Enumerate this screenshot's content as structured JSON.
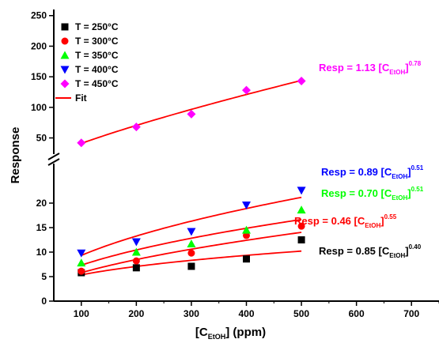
{
  "chart_data": {
    "type": "scatter",
    "ylabel": "Response",
    "xlabel_main": "[C",
    "xlabel_sub": "EtOH",
    "xlabel_tail": "] (ppm)",
    "xlim": [
      50,
      750
    ],
    "x_ticks": [
      100,
      200,
      300,
      400,
      500,
      600,
      700
    ],
    "x_tick_labels": [
      "100",
      "200",
      "300",
      "400",
      "500",
      "600",
      "700"
    ],
    "axis_break": true,
    "lower_ylim": [
      0,
      25
    ],
    "lower_y_ticks": [
      0,
      5,
      10,
      15,
      20
    ],
    "lower_y_tick_labels": [
      "0",
      "5",
      "10",
      "15",
      "20"
    ],
    "upper_ylim": [
      30,
      260
    ],
    "upper_y_ticks": [
      50,
      100,
      150,
      200,
      250
    ],
    "upper_y_tick_labels": [
      "50",
      "100",
      "150",
      "200",
      "250"
    ],
    "x": [
      100,
      200,
      300,
      400,
      500
    ],
    "series": [
      {
        "name": "T = 250°C",
        "marker": "square",
        "color": "#000000",
        "values": [
          5.8,
          6.8,
          7.1,
          8.6,
          12.5
        ],
        "fit": {
          "a": 0.85,
          "b": 0.4
        },
        "fit_label_main": "Resp = 0.85 [C",
        "fit_label_sub": "EtOH",
        "fit_label_close": "]",
        "fit_label_exp": "0.40"
      },
      {
        "name": "T = 300°C",
        "marker": "circle",
        "color": "#ff0000",
        "values": [
          6.1,
          8.2,
          9.8,
          13.4,
          15.3
        ],
        "fit": {
          "a": 0.46,
          "b": 0.55
        },
        "fit_label_main": "Resp = 0.46 [C",
        "fit_label_sub": "EtOH",
        "fit_label_close": "]",
        "fit_label_exp": "0.55"
      },
      {
        "name": "T = 350°C",
        "marker": "triangle-up",
        "color": "#00ff00",
        "values": [
          7.8,
          10.0,
          11.7,
          14.5,
          18.6
        ],
        "fit": {
          "a": 0.7,
          "b": 0.51
        },
        "fit_label_main": "Resp = 0.70 [C",
        "fit_label_sub": "EtOH",
        "fit_label_close": "]",
        "fit_label_exp": "0.51"
      },
      {
        "name": "T = 400°C",
        "marker": "triangle-down",
        "color": "#0000ff",
        "values": [
          9.8,
          12.1,
          14.2,
          19.6,
          22.6
        ],
        "fit": {
          "a": 0.89,
          "b": 0.51
        },
        "fit_label_main": "Resp = 0.89 [C",
        "fit_label_sub": "EtOH",
        "fit_label_close": "]",
        "fit_label_exp": "0.51"
      },
      {
        "name": "T = 450°C",
        "marker": "diamond",
        "color": "#ff00ff",
        "values": [
          42,
          68,
          89,
          128,
          143
        ],
        "fit": {
          "a": 1.13,
          "b": 0.78
        },
        "fit_label_main": "Resp = 1.13 [C",
        "fit_label_sub": "EtOH",
        "fit_label_close": "]",
        "fit_label_exp": "0.78"
      }
    ],
    "fit_legend_label": "Fit",
    "fit_color": "#ff0000",
    "legend_position": "top-left",
    "grid": false
  }
}
